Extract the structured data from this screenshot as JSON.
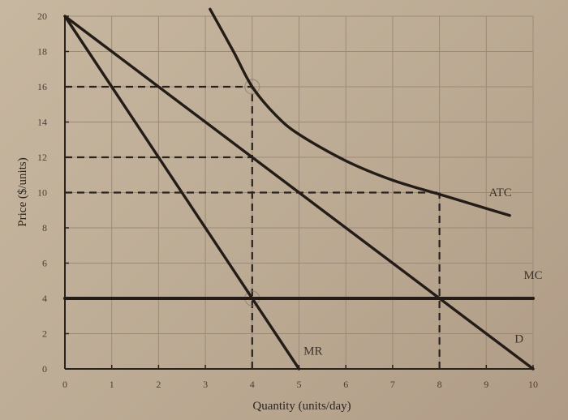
{
  "chart_data": {
    "type": "line",
    "title": "",
    "xlabel": "Quantity (units/day)",
    "ylabel": "Price ($/units)",
    "xlim": [
      0,
      10
    ],
    "ylim": [
      0,
      20
    ],
    "x_ticks": [
      "0",
      "1",
      "2",
      "3",
      "4",
      "5",
      "6",
      "7",
      "8",
      "9",
      "10"
    ],
    "y_ticks": [
      "0",
      "2",
      "4",
      "6",
      "8",
      "10",
      "12",
      "14",
      "16",
      "18",
      "20"
    ],
    "grid": true,
    "legend": "inline labels",
    "series": [
      {
        "name": "D",
        "kind": "line",
        "points": [
          [
            0,
            20
          ],
          [
            10,
            0
          ]
        ],
        "label_pos": [
          9.7,
          1.5
        ]
      },
      {
        "name": "MR",
        "kind": "line",
        "points": [
          [
            0,
            20
          ],
          [
            5,
            0
          ]
        ],
        "label_pos": [
          5.3,
          0.8
        ]
      },
      {
        "name": "MC",
        "kind": "horizontal",
        "points": [
          [
            0,
            4
          ],
          [
            10,
            4
          ]
        ],
        "label_pos": [
          10.0,
          5.1
        ]
      },
      {
        "name": "ATC",
        "kind": "curve",
        "points": [
          [
            3.1,
            20.4
          ],
          [
            3.6,
            18
          ],
          [
            4,
            16
          ],
          [
            4.5,
            14.4
          ],
          [
            5,
            13.3
          ],
          [
            6,
            11.8
          ],
          [
            7,
            10.7
          ],
          [
            8,
            9.9
          ],
          [
            9,
            9.1
          ],
          [
            9.5,
            8.7
          ]
        ],
        "label_pos": [
          9.3,
          9.8
        ]
      }
    ],
    "reference_lines": [
      {
        "type": "dashed-horizontal",
        "y": 16,
        "x_from": 0,
        "x_to": 4
      },
      {
        "type": "dashed-horizontal",
        "y": 12,
        "x_from": 0,
        "x_to": 4
      },
      {
        "type": "dashed-horizontal",
        "y": 10,
        "x_from": 0,
        "x_to": 8
      },
      {
        "type": "dashed-vertical",
        "x": 4,
        "y_from": 0,
        "y_to": 16
      },
      {
        "type": "dashed-vertical",
        "x": 8,
        "y_from": 0,
        "y_to": 10
      }
    ],
    "annotations": [
      {
        "text": "circle",
        "at": [
          4,
          16
        ]
      },
      {
        "text": "circle",
        "at": [
          4,
          4
        ]
      }
    ]
  }
}
